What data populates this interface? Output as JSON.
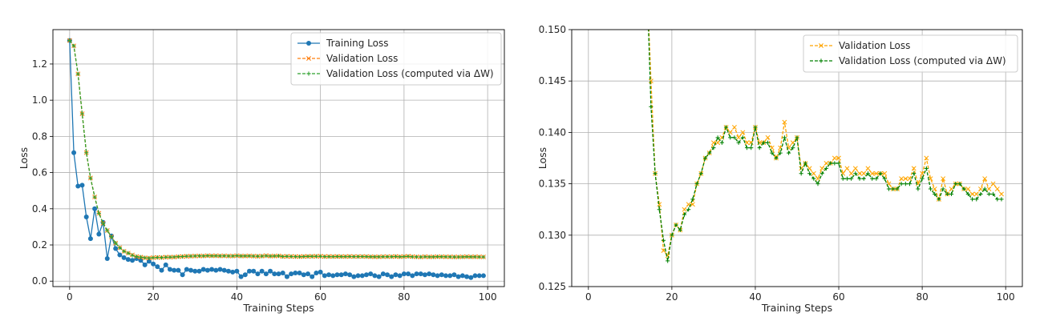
{
  "chart_data": [
    {
      "type": "line",
      "xlabel": "Training Steps",
      "ylabel": "Loss",
      "xlim": [
        -4,
        104
      ],
      "ylim": [
        -0.03,
        1.39
      ],
      "xticks": [
        0,
        20,
        40,
        60,
        80,
        100
      ],
      "yticks": [
        0.0,
        0.2,
        0.4,
        0.6,
        0.8,
        1.0,
        1.2
      ],
      "ytick_labels": [
        "0.0",
        "0.2",
        "0.4",
        "0.6",
        "0.8",
        "1.0",
        "1.2"
      ],
      "grid": true,
      "legend_position": "top-right",
      "series": [
        {
          "name": "Training Loss",
          "color": "#1f77b4",
          "linestyle": "solid",
          "marker": "circle",
          "x": [
            0,
            1,
            2,
            3,
            4,
            5,
            6,
            7,
            8,
            9,
            10,
            11,
            12,
            13,
            14,
            15,
            16,
            17,
            18,
            19,
            20,
            21,
            22,
            23,
            24,
            25,
            26,
            27,
            28,
            29,
            30,
            31,
            32,
            33,
            34,
            35,
            36,
            37,
            38,
            39,
            40,
            41,
            42,
            43,
            44,
            45,
            46,
            47,
            48,
            49,
            50,
            51,
            52,
            53,
            54,
            55,
            56,
            57,
            58,
            59,
            60,
            61,
            62,
            63,
            64,
            65,
            66,
            67,
            68,
            69,
            70,
            71,
            72,
            73,
            74,
            75,
            76,
            77,
            78,
            79,
            80,
            81,
            82,
            83,
            84,
            85,
            86,
            87,
            88,
            89,
            90,
            91,
            92,
            93,
            94,
            95,
            96,
            97,
            98,
            99
          ],
          "y": [
            1.33,
            0.71,
            0.525,
            0.53,
            0.355,
            0.235,
            0.4,
            0.26,
            0.325,
            0.125,
            0.25,
            0.18,
            0.145,
            0.13,
            0.12,
            0.115,
            0.125,
            0.115,
            0.09,
            0.11,
            0.095,
            0.08,
            0.06,
            0.09,
            0.065,
            0.06,
            0.06,
            0.035,
            0.065,
            0.06,
            0.055,
            0.055,
            0.065,
            0.06,
            0.065,
            0.06,
            0.065,
            0.06,
            0.055,
            0.05,
            0.055,
            0.025,
            0.035,
            0.055,
            0.055,
            0.04,
            0.055,
            0.04,
            0.055,
            0.04,
            0.04,
            0.045,
            0.025,
            0.04,
            0.045,
            0.045,
            0.035,
            0.04,
            0.025,
            0.045,
            0.05,
            0.03,
            0.035,
            0.03,
            0.035,
            0.035,
            0.04,
            0.035,
            0.025,
            0.03,
            0.03,
            0.035,
            0.04,
            0.03,
            0.025,
            0.04,
            0.035,
            0.025,
            0.035,
            0.03,
            0.04,
            0.04,
            0.03,
            0.04,
            0.04,
            0.035,
            0.04,
            0.035,
            0.03,
            0.035,
            0.03,
            0.03,
            0.035,
            0.025,
            0.03,
            0.025,
            0.02,
            0.03,
            0.03,
            0.03
          ]
        },
        {
          "name": "Validation Loss",
          "color": "#ff7f0e",
          "linestyle": "dashed",
          "marker": "x",
          "x": [
            0,
            1,
            2,
            3,
            4,
            5,
            6,
            7,
            8,
            9,
            10,
            11,
            12,
            13,
            14,
            15,
            16,
            17,
            18,
            19,
            20,
            21,
            22,
            23,
            24,
            25,
            26,
            27,
            28,
            29,
            30,
            31,
            32,
            33,
            34,
            35,
            36,
            37,
            38,
            39,
            40,
            41,
            42,
            43,
            44,
            45,
            46,
            47,
            48,
            49,
            50,
            51,
            52,
            53,
            54,
            55,
            56,
            57,
            58,
            59,
            60,
            61,
            62,
            63,
            64,
            65,
            66,
            67,
            68,
            69,
            70,
            71,
            72,
            73,
            74,
            75,
            76,
            77,
            78,
            79,
            80,
            81,
            82,
            83,
            84,
            85,
            86,
            87,
            88,
            89,
            90,
            91,
            92,
            93,
            94,
            95,
            96,
            97,
            98,
            99
          ],
          "y": [
            1.33,
            1.3,
            1.145,
            0.925,
            0.71,
            0.57,
            0.465,
            0.375,
            0.32,
            0.28,
            0.245,
            0.21,
            0.185,
            0.165,
            0.155,
            0.145,
            0.136,
            0.133,
            0.1285,
            0.128,
            0.13,
            0.131,
            0.1305,
            0.1325,
            0.133,
            0.133,
            0.135,
            0.136,
            0.1375,
            0.138,
            0.139,
            0.139,
            0.1395,
            0.1405,
            0.14,
            0.1405,
            0.1395,
            0.14,
            0.139,
            0.139,
            0.1405,
            0.139,
            0.139,
            0.1395,
            0.1385,
            0.1375,
            0.1385,
            0.141,
            0.1385,
            0.139,
            0.1395,
            0.1365,
            0.137,
            0.1365,
            0.136,
            0.1355,
            0.1365,
            0.137,
            0.137,
            0.1375,
            0.1375,
            0.136,
            0.1365,
            0.136,
            0.1365,
            0.136,
            0.136,
            0.1365,
            0.136,
            0.136,
            0.136,
            0.136,
            0.135,
            0.1345,
            0.1345,
            0.1355,
            0.1355,
            0.1355,
            0.1365,
            0.135,
            0.136,
            0.1375,
            0.1355,
            0.1345,
            0.1335,
            0.1355,
            0.134,
            0.1345,
            0.135,
            0.135,
            0.1345,
            0.1345,
            0.134,
            0.134,
            0.1345,
            0.1355,
            0.1345,
            0.135,
            0.1345,
            0.134
          ]
        },
        {
          "name": "Validation Loss (computed via ΔW)",
          "color": "#2ca02c",
          "linestyle": "dashed",
          "marker": "plus",
          "x": [
            0,
            1,
            2,
            3,
            4,
            5,
            6,
            7,
            8,
            9,
            10,
            11,
            12,
            13,
            14,
            15,
            16,
            17,
            18,
            19,
            20,
            21,
            22,
            23,
            24,
            25,
            26,
            27,
            28,
            29,
            30,
            31,
            32,
            33,
            34,
            35,
            36,
            37,
            38,
            39,
            40,
            41,
            42,
            43,
            44,
            45,
            46,
            47,
            48,
            49,
            50,
            51,
            52,
            53,
            54,
            55,
            56,
            57,
            58,
            59,
            60,
            61,
            62,
            63,
            64,
            65,
            66,
            67,
            68,
            69,
            70,
            71,
            72,
            73,
            74,
            75,
            76,
            77,
            78,
            79,
            80,
            81,
            82,
            83,
            84,
            85,
            86,
            87,
            88,
            89,
            90,
            91,
            92,
            93,
            94,
            95,
            96,
            97,
            98,
            99
          ],
          "y": [
            1.33,
            1.3,
            1.145,
            0.925,
            0.71,
            0.57,
            0.465,
            0.375,
            0.32,
            0.28,
            0.245,
            0.21,
            0.185,
            0.165,
            0.155,
            0.1425,
            0.136,
            0.1325,
            0.1295,
            0.1275,
            0.13,
            0.131,
            0.1305,
            0.132,
            0.1325,
            0.1335,
            0.135,
            0.136,
            0.1375,
            0.138,
            0.1385,
            0.1395,
            0.139,
            0.1405,
            0.1395,
            0.1395,
            0.139,
            0.1395,
            0.1385,
            0.1385,
            0.1405,
            0.1385,
            0.139,
            0.139,
            0.138,
            0.1375,
            0.138,
            0.1395,
            0.138,
            0.1385,
            0.1395,
            0.136,
            0.137,
            0.136,
            0.1355,
            0.135,
            0.136,
            0.1365,
            0.137,
            0.137,
            0.137,
            0.1355,
            0.1355,
            0.1355,
            0.136,
            0.1355,
            0.1355,
            0.136,
            0.1355,
            0.1355,
            0.136,
            0.1355,
            0.1345,
            0.1345,
            0.1345,
            0.135,
            0.135,
            0.135,
            0.136,
            0.1345,
            0.1355,
            0.1365,
            0.1345,
            0.134,
            0.1335,
            0.1345,
            0.134,
            0.134,
            0.135,
            0.135,
            0.1345,
            0.134,
            0.1335,
            0.1335,
            0.134,
            0.1345,
            0.134,
            0.134,
            0.1335,
            0.1335
          ]
        }
      ]
    },
    {
      "type": "line",
      "xlabel": "Training Steps",
      "ylabel": "Loss",
      "xlim": [
        -4,
        104
      ],
      "ylim": [
        0.125,
        0.15
      ],
      "xticks": [
        0,
        20,
        40,
        60,
        80,
        100
      ],
      "yticks": [
        0.125,
        0.13,
        0.135,
        0.14,
        0.145,
        0.15
      ],
      "ytick_labels": [
        "0.125",
        "0.130",
        "0.135",
        "0.140",
        "0.145",
        "0.150"
      ],
      "grid": true,
      "legend_position": "top-right",
      "series": [
        {
          "name": "Validation Loss",
          "color": "#ffa500",
          "linestyle": "dashed",
          "marker": "x",
          "ref": 1
        },
        {
          "name": "Validation Loss (computed via ΔW)",
          "color": "#008000",
          "linestyle": "dashed",
          "marker": "plus",
          "ref": 2
        }
      ]
    }
  ]
}
